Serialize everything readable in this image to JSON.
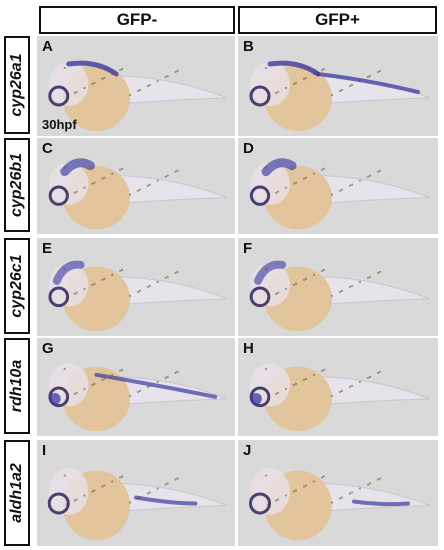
{
  "columns": {
    "left": "GFP-",
    "right": "GFP+"
  },
  "rows": [
    {
      "gene": "cyp26a1",
      "panels": [
        "A",
        "B"
      ],
      "stage": "30hpf"
    },
    {
      "gene": "cyp26b1",
      "panels": [
        "C",
        "D"
      ]
    },
    {
      "gene": "cyp26c1",
      "panels": [
        "E",
        "F"
      ]
    },
    {
      "gene": "rdh10a",
      "panels": [
        "G",
        "H"
      ]
    },
    {
      "gene": "aldh1a2",
      "panels": [
        "I",
        "J"
      ]
    }
  ],
  "colors": {
    "panel_background": "#d9d9d9",
    "yolk": "#e2c59c",
    "stain": "#3c3aa0",
    "border": "#111111"
  }
}
